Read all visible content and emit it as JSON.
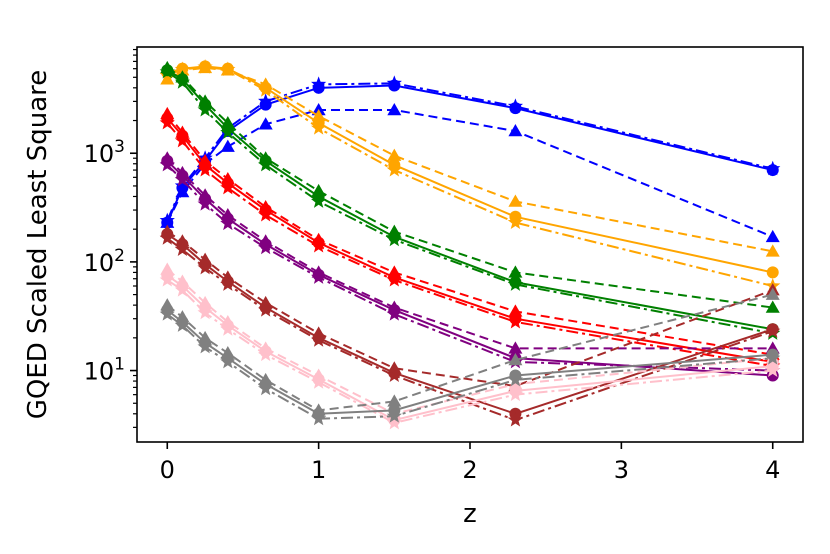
{
  "chart_data": {
    "type": "line",
    "xlabel": "z",
    "ylabel": "GQED Scaled Least Square",
    "yscale": "log",
    "xlim": [
      -0.2,
      4.2
    ],
    "ylim": [
      2.2,
      9500
    ],
    "xticks": [
      0,
      1,
      2,
      3,
      4
    ],
    "xtick_labels": [
      "0",
      "1",
      "2",
      "3",
      "4"
    ],
    "yticks": [
      10,
      100,
      1000
    ],
    "ytick_labels": [
      "10^1",
      "10^2",
      "10^3"
    ],
    "grid": false,
    "legend": "none",
    "x": [
      0,
      0.1,
      0.25,
      0.4,
      0.65,
      1.0,
      1.5,
      2.3,
      4.0
    ],
    "series": [
      {
        "color": "#0000ff",
        "linestyle": "solid",
        "marker": "circle",
        "values": [
          230,
          480,
          850,
          1600,
          2800,
          4000,
          4200,
          2600,
          700
        ]
      },
      {
        "color": "#0000ff",
        "linestyle": "dashed",
        "marker": "triangle",
        "values": [
          230,
          440,
          800,
          1150,
          1850,
          2500,
          2500,
          1600,
          170
        ]
      },
      {
        "color": "#0000ff",
        "linestyle": "dashdot",
        "marker": "star",
        "values": [
          240,
          500,
          900,
          1700,
          3000,
          4300,
          4400,
          2700,
          720
        ]
      },
      {
        "color": "#ffa500",
        "linestyle": "solid",
        "marker": "circle",
        "values": [
          5500,
          6000,
          6300,
          6000,
          4000,
          1900,
          780,
          260,
          80
        ]
      },
      {
        "color": "#ffa500",
        "linestyle": "dashed",
        "marker": "triangle",
        "values": [
          4800,
          5800,
          6100,
          5800,
          4300,
          2200,
          950,
          360,
          125
        ]
      },
      {
        "color": "#ffa500",
        "linestyle": "dashdot",
        "marker": "star",
        "values": [
          5200,
          5900,
          6200,
          5900,
          3800,
          1700,
          700,
          230,
          60
        ]
      },
      {
        "color": "#008000",
        "linestyle": "solid",
        "marker": "circle",
        "values": [
          5800,
          4800,
          2800,
          1700,
          850,
          400,
          170,
          65,
          24
        ]
      },
      {
        "color": "#008000",
        "linestyle": "dashed",
        "marker": "triangle",
        "values": [
          6100,
          5000,
          3000,
          1900,
          900,
          450,
          190,
          80,
          38
        ]
      },
      {
        "color": "#008000",
        "linestyle": "dashdot",
        "marker": "star",
        "values": [
          5600,
          4500,
          2500,
          1550,
          780,
          360,
          160,
          62,
          22
        ]
      },
      {
        "color": "#ff0000",
        "linestyle": "solid",
        "marker": "circle",
        "values": [
          2100,
          1450,
          780,
          530,
          300,
          150,
          72,
          30,
          12
        ]
      },
      {
        "color": "#ff0000",
        "linestyle": "dashed",
        "marker": "triangle",
        "values": [
          2300,
          1550,
          850,
          580,
          320,
          160,
          80,
          35,
          14
        ]
      },
      {
        "color": "#ff0000",
        "linestyle": "dashdot",
        "marker": "star",
        "values": [
          1900,
          1300,
          700,
          480,
          270,
          140,
          68,
          28,
          11
        ]
      },
      {
        "color": "#800080",
        "linestyle": "solid",
        "marker": "circle",
        "values": [
          850,
          620,
          380,
          250,
          145,
          76,
          36,
          13,
          9
        ]
      },
      {
        "color": "#800080",
        "linestyle": "dashed",
        "marker": "triangle",
        "values": [
          900,
          660,
          410,
          270,
          155,
          80,
          38,
          16,
          16
        ]
      },
      {
        "color": "#800080",
        "linestyle": "dashdot",
        "marker": "star",
        "values": [
          780,
          570,
          340,
          225,
          135,
          72,
          33,
          12,
          10
        ]
      },
      {
        "color": "#a52a2a",
        "linestyle": "solid",
        "marker": "circle",
        "values": [
          180,
          145,
          95,
          66,
          38,
          20,
          9.5,
          4.0,
          24
        ]
      },
      {
        "color": "#a52a2a",
        "linestyle": "dashed",
        "marker": "triangle",
        "values": [
          190,
          155,
          105,
          72,
          42,
          22,
          10.5,
          7.2,
          55
        ]
      },
      {
        "color": "#a52a2a",
        "linestyle": "dashdot",
        "marker": "star",
        "values": [
          165,
          130,
          88,
          62,
          36,
          19,
          9.0,
          3.5,
          23
        ]
      },
      {
        "color": "#ffc0cb",
        "linestyle": "solid",
        "marker": "circle",
        "values": [
          75,
          60,
          38,
          26,
          15,
          8.3,
          3.5,
          6.5,
          11
        ]
      },
      {
        "color": "#ffc0cb",
        "linestyle": "dashed",
        "marker": "triangle",
        "values": [
          85,
          66,
          42,
          28,
          16,
          9.0,
          4.0,
          7.5,
          13
        ]
      },
      {
        "color": "#ffc0cb",
        "linestyle": "dashdot",
        "marker": "star",
        "values": [
          68,
          55,
          34,
          24,
          14,
          7.8,
          3.3,
          6.0,
          10
        ]
      },
      {
        "color": "#808080",
        "linestyle": "solid",
        "marker": "circle",
        "values": [
          36,
          28,
          18,
          13,
          7.5,
          4.0,
          4.3,
          9.0,
          14
        ]
      },
      {
        "color": "#808080",
        "linestyle": "dashed",
        "marker": "triangle",
        "values": [
          40,
          31,
          20,
          14.5,
          8.2,
          4.3,
          5.2,
          12.5,
          50
        ]
      },
      {
        "color": "#808080",
        "linestyle": "dashdot",
        "marker": "star",
        "values": [
          33,
          26,
          16.5,
          12,
          6.8,
          3.6,
          3.8,
          8.2,
          13
        ]
      }
    ]
  }
}
